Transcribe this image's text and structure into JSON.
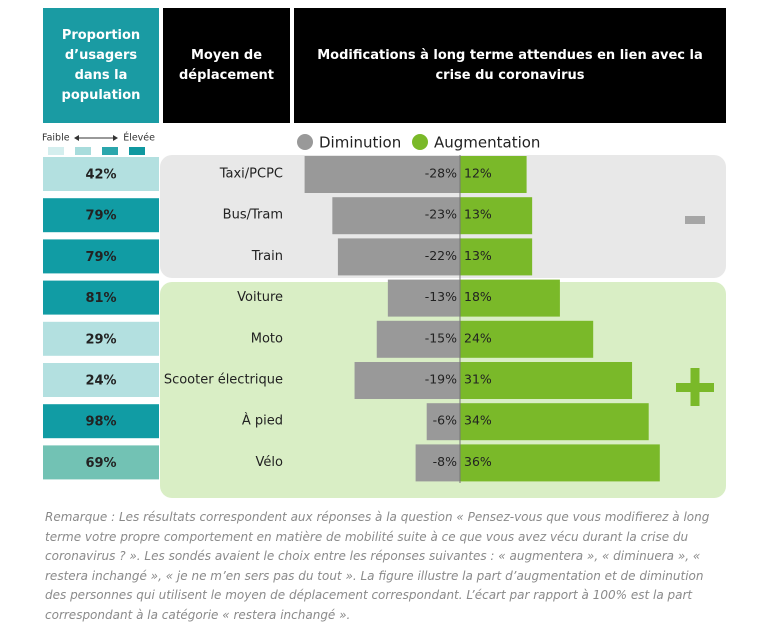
{
  "header": {
    "col1": "Proportion d’usagers dans la population",
    "col2": "Moyen de déplacement",
    "col3": "Modifications à long terme attendues en lien avec la crise du coronavirus"
  },
  "scale": {
    "low": "Faible",
    "high": "Élevée",
    "colors": [
      "#d4eeee",
      "#a8dcdc",
      "#2aa6ac",
      "#0f98a0"
    ]
  },
  "proportions": {
    "values": [
      42,
      79,
      79,
      81,
      29,
      24,
      98,
      69
    ],
    "value_labels": [
      "42%",
      "79%",
      "79%",
      "81%",
      "29%",
      "24%",
      "98%",
      "69%"
    ],
    "colors": [
      "#b3e0e0",
      "#119ca4",
      "#119ca4",
      "#119ca4",
      "#b3e0e0",
      "#b3e0e0",
      "#119ca4",
      "#72c2b4"
    ]
  },
  "chart_data": {
    "type": "diverging-bar",
    "categories": [
      "Taxi/PCPC",
      "Bus/Tram",
      "Train",
      "Voiture",
      "Moto",
      "Scooter électrique",
      "À pied",
      "Vélo"
    ],
    "series": [
      {
        "name": "Diminution",
        "color": "#999999",
        "values": [
          -28,
          -23,
          -22,
          -13,
          -15,
          -19,
          -6,
          -8
        ],
        "value_labels": [
          "-28%",
          "-23%",
          "-22%",
          "-13%",
          "-15%",
          "-19%",
          "-6%",
          "-8%"
        ]
      },
      {
        "name": "Augmentation",
        "color": "#7ab929",
        "values": [
          12,
          13,
          13,
          18,
          24,
          31,
          34,
          36
        ],
        "value_labels": [
          "12%",
          "13%",
          "13%",
          "18%",
          "24%",
          "31%",
          "34%",
          "36%"
        ]
      }
    ],
    "xlim": [
      -40,
      40
    ]
  },
  "note": "Remarque : Les résultats correspondent aux réponses à la question « Pensez-vous que vous modifierez à long terme votre propre comportement en matière de mobilité suite à ce que vous avez vécu durant la crise du coronavirus ? ». Les sondés avaient le choix entre les réponses suivantes : « augmentera », « diminuera », « restera inchangé », « je ne m’en sers pas du tout ». La figure illustre la part d’augmentation et de diminution des personnes qui utilisent le moyen de déplacement correspondant. L’écart par rapport à 100% est la part correspondant à la catégorie « restera inchangé »."
}
